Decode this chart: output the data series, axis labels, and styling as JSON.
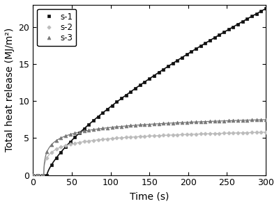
{
  "title": "",
  "xlabel": "Time (s)",
  "ylabel": "Total heat release (MJ/m²)",
  "xlim": [
    0,
    300
  ],
  "ylim": [
    0,
    23
  ],
  "xticks": [
    0,
    50,
    100,
    150,
    200,
    250,
    300
  ],
  "yticks": [
    0,
    5,
    10,
    15,
    20
  ],
  "series": [
    {
      "label": "s-1",
      "color": "#111111",
      "marker": "s",
      "markersize": 3.5,
      "linewidth": 1.2,
      "ign": 18,
      "A": 22.5,
      "tau": 420,
      "power": 0.72
    },
    {
      "label": "s-2",
      "color": "#bbbbbb",
      "marker": "P",
      "markersize": 3.5,
      "linewidth": 0.9,
      "ign": 14,
      "A": 10.5,
      "tau": 12,
      "power": 0.38
    },
    {
      "label": "s-3",
      "color": "#777777",
      "marker": "^",
      "markersize": 3.5,
      "linewidth": 0.9,
      "ign": 14,
      "A": 12.5,
      "tau": 8,
      "power": 0.4
    }
  ],
  "legend_loc": "upper left",
  "legend_fontsize": 8.5,
  "axis_fontsize": 10,
  "tick_fontsize": 9,
  "background_color": "#ffffff",
  "marker_every_t": 6
}
